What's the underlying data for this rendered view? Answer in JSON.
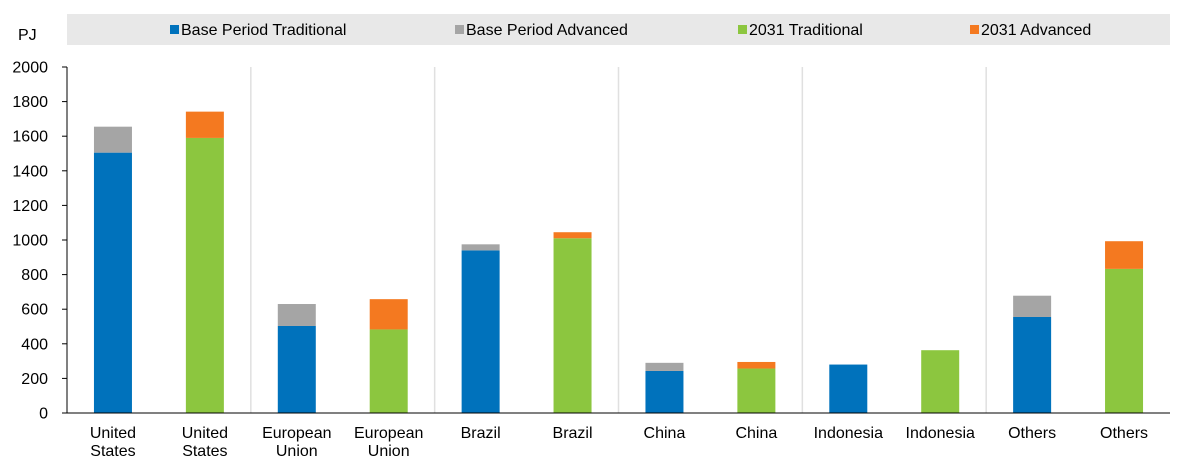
{
  "chart_data": {
    "type": "bar",
    "stacked": true,
    "ylabel": "PJ",
    "ylim": [
      0,
      2000
    ],
    "yticks": [
      0,
      200,
      400,
      600,
      800,
      1000,
      1200,
      1400,
      1600,
      1800,
      2000
    ],
    "categories": [
      "United States",
      "United States",
      "European Union",
      "European Union",
      "Brazil",
      "Brazil",
      "China",
      "China",
      "Indonesia",
      "Indonesia",
      "Others",
      "Others"
    ],
    "legend_position": "top",
    "grid": "vertical separators between country groups",
    "series": [
      {
        "name": "Base Period Traditional",
        "color": "#0072bc",
        "values": [
          1505,
          0,
          503,
          0,
          940,
          0,
          243,
          0,
          280,
          0,
          555,
          0
        ]
      },
      {
        "name": "Base Period Advanced",
        "color": "#a5a5a5",
        "values": [
          150,
          0,
          127,
          0,
          35,
          0,
          47,
          0,
          0,
          0,
          123,
          0
        ]
      },
      {
        "name": "2031 Traditional",
        "color": "#8cc63f",
        "values": [
          0,
          1590,
          0,
          483,
          0,
          1010,
          0,
          257,
          0,
          363,
          0,
          833
        ]
      },
      {
        "name": "2031 Advanced",
        "color": "#f47920",
        "values": [
          0,
          152,
          0,
          175,
          0,
          35,
          0,
          38,
          0,
          0,
          0,
          160
        ]
      }
    ]
  }
}
